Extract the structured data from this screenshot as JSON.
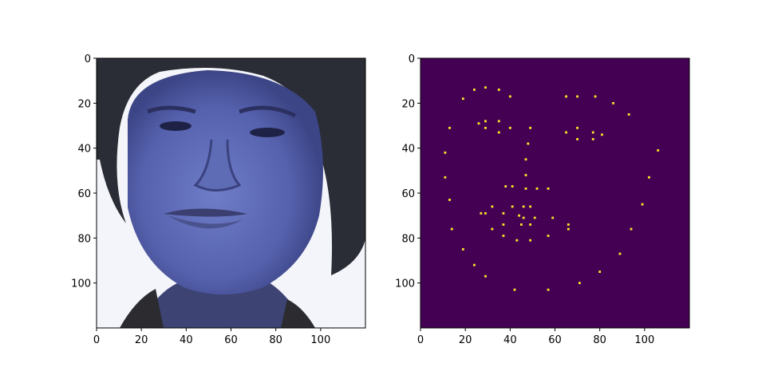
{
  "figure": {
    "background": "#ffffff"
  },
  "chart_data": [
    {
      "type": "image",
      "content": "grayscale face photograph rendered with a blue-purple colormap",
      "colormap_tint": "#5a68b8",
      "xlim": [
        0,
        120
      ],
      "ylim": [
        120,
        0
      ],
      "xticks": [
        0,
        20,
        40,
        60,
        80,
        100
      ],
      "yticks": [
        0,
        20,
        40,
        60,
        80,
        100
      ]
    },
    {
      "type": "heatmap",
      "colormap": "viridis",
      "background_color": "#440154",
      "point_color": "#fde725",
      "xlim": [
        0,
        120
      ],
      "ylim": [
        120,
        0
      ],
      "xticks": [
        0,
        20,
        40,
        60,
        80,
        100
      ],
      "yticks": [
        0,
        20,
        40,
        60,
        80,
        100
      ],
      "points": [
        [
          19,
          18
        ],
        [
          24,
          14
        ],
        [
          29,
          13
        ],
        [
          35,
          14
        ],
        [
          40,
          17
        ],
        [
          65,
          17
        ],
        [
          70,
          17
        ],
        [
          78,
          17
        ],
        [
          86,
          20
        ],
        [
          93,
          25
        ],
        [
          13,
          31
        ],
        [
          26,
          29
        ],
        [
          29,
          28
        ],
        [
          29,
          31
        ],
        [
          35,
          28
        ],
        [
          35,
          33
        ],
        [
          40,
          31
        ],
        [
          49,
          31
        ],
        [
          65,
          33
        ],
        [
          70,
          31
        ],
        [
          70,
          36
        ],
        [
          77,
          33
        ],
        [
          77,
          36
        ],
        [
          81,
          34
        ],
        [
          48,
          38
        ],
        [
          11,
          42
        ],
        [
          47,
          45
        ],
        [
          106,
          41
        ],
        [
          47,
          52
        ],
        [
          11,
          53
        ],
        [
          102,
          53
        ],
        [
          38,
          57
        ],
        [
          41,
          57
        ],
        [
          47,
          58
        ],
        [
          52,
          58
        ],
        [
          57,
          58
        ],
        [
          13,
          63
        ],
        [
          32,
          66
        ],
        [
          41,
          66
        ],
        [
          46,
          66
        ],
        [
          49,
          66
        ],
        [
          99,
          65
        ],
        [
          27,
          69
        ],
        [
          29,
          69
        ],
        [
          37,
          69
        ],
        [
          44,
          70
        ],
        [
          46,
          71
        ],
        [
          51,
          71
        ],
        [
          59,
          71
        ],
        [
          37,
          74
        ],
        [
          45,
          74
        ],
        [
          49,
          74
        ],
        [
          66,
          74
        ],
        [
          66,
          76
        ],
        [
          14,
          76
        ],
        [
          32,
          76
        ],
        [
          94,
          76
        ],
        [
          37,
          79
        ],
        [
          57,
          79
        ],
        [
          43,
          81
        ],
        [
          49,
          81
        ],
        [
          19,
          85
        ],
        [
          89,
          87
        ],
        [
          24,
          92
        ],
        [
          80,
          95
        ],
        [
          29,
          97
        ],
        [
          71,
          100
        ],
        [
          42,
          103
        ],
        [
          57,
          103
        ]
      ]
    }
  ]
}
